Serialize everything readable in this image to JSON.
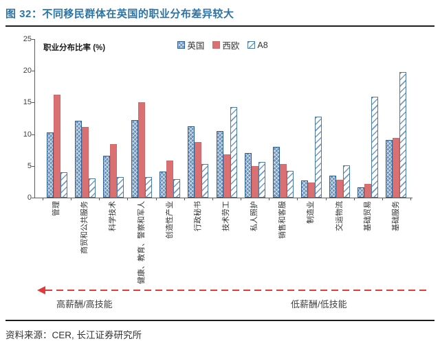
{
  "header": {
    "title": "图 32：不同移民群体在英国的职业分布差异较大"
  },
  "chart_data": {
    "type": "bar",
    "title": "职业分布比率 (%)",
    "categories": [
      "管理",
      "商贸和公共服务",
      "科学技术",
      "健康、教育、警察和军人",
      "创造性产业",
      "行政秘书",
      "技术劳工",
      "私人照护",
      "销售和客服",
      "制造业",
      "交运物流",
      "基础贸易",
      "基础服务"
    ],
    "series": [
      {
        "name": "英国",
        "style": "crosshatch-blue",
        "color": "#6a92ba",
        "values": [
          10.3,
          12.1,
          6.6,
          12.2,
          4.1,
          11.3,
          10.5,
          7.0,
          8.0,
          2.7,
          3.5,
          1.6,
          9.1
        ]
      },
      {
        "name": "西欧",
        "style": "solid-salmon",
        "color": "#d97173",
        "values": [
          16.2,
          11.2,
          8.4,
          15.0,
          5.8,
          8.8,
          6.8,
          5.0,
          5.3,
          2.4,
          2.8,
          2.2,
          9.4
        ]
      },
      {
        "name": "A8",
        "style": "diagonal-hatch-white",
        "color": "#6f98c5",
        "values": [
          4.0,
          3.0,
          3.2,
          3.2,
          2.9,
          5.3,
          14.3,
          5.6,
          4.2,
          12.8,
          5.1,
          15.9,
          19.8
        ]
      }
    ],
    "ylim": [
      0,
      25
    ],
    "yticks": [
      0,
      5,
      10,
      15,
      20,
      25
    ],
    "legend_position": "top-center",
    "grid": false,
    "xlabel_rotation": -90
  },
  "annotations": {
    "left": "高薪酬/高技能",
    "right": "低薪酬/低技能",
    "arrow_color": "#e03a3a",
    "arrow_direction": "left"
  },
  "footer": {
    "source": "资料来源：CER, 长江证券研究所"
  },
  "colors": {
    "title_blue": "#2b74a6",
    "rule_dark": "#1c1c1c",
    "axis_gray": "#595959"
  }
}
